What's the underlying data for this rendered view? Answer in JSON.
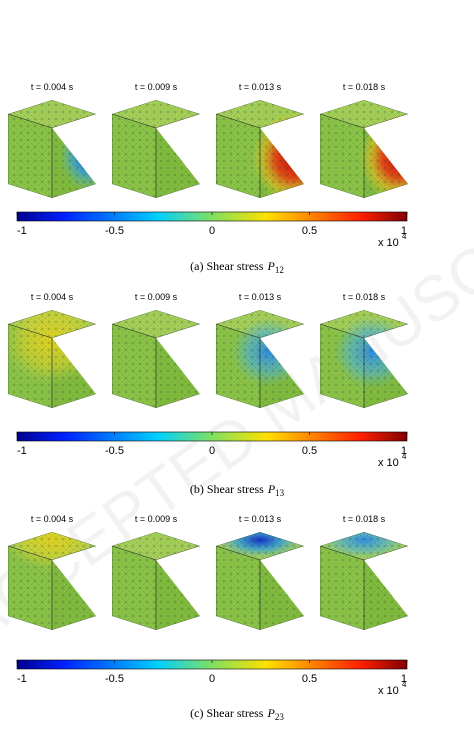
{
  "watermark": "ACCEPTED MANUSCRIPT",
  "panels": [
    {
      "times": [
        "t = 0.004 s",
        "t = 0.009 s",
        "t = 0.013 s",
        "t = 0.018 s"
      ],
      "colorbar_ticks": [
        -1,
        -0.5,
        0,
        0.5,
        1
      ],
      "multiplier": "x 10",
      "exponent": "4",
      "caption": {
        "label": "(a) Shear stress",
        "symbol": "P",
        "subscript": "12"
      }
    },
    {
      "times": [
        "t = 0.004 s",
        "t = 0.009 s",
        "t = 0.013 s",
        "t = 0.018 s"
      ],
      "colorbar_ticks": [
        -1,
        -0.5,
        0,
        0.5,
        1
      ],
      "multiplier": "x 10",
      "exponent": "4",
      "caption": {
        "label": "(b) Shear stress",
        "symbol": "P",
        "subscript": "13"
      }
    },
    {
      "times": [
        "t = 0.004 s",
        "t = 0.009 s",
        "t = 0.013 s",
        "t = 0.018 s"
      ],
      "colorbar_ticks": [
        -1,
        -0.5,
        0,
        0.5,
        1
      ],
      "multiplier": "x 10",
      "exponent": "4",
      "caption": {
        "label": "(c) Shear stress",
        "symbol": "P",
        "subscript": "23"
      }
    }
  ]
}
